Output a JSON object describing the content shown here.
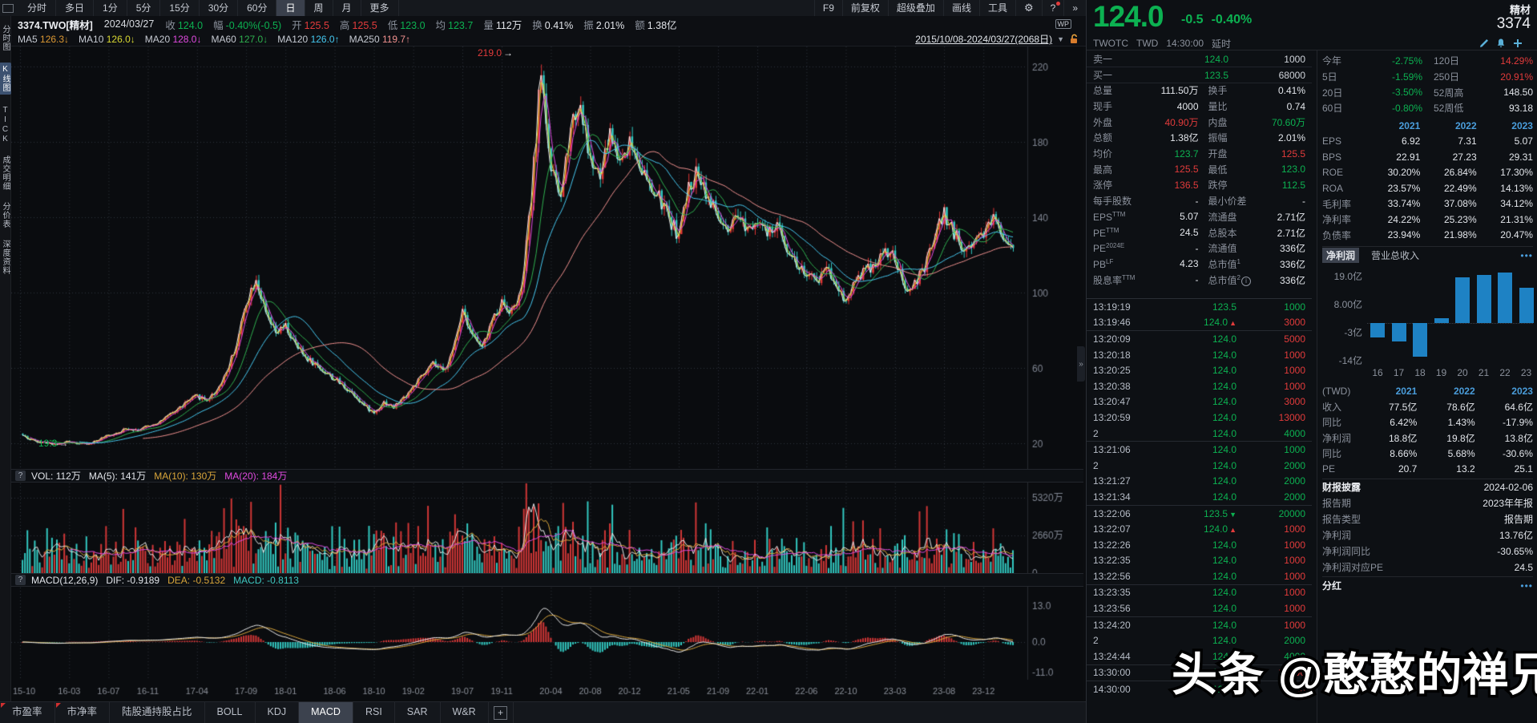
{
  "colors": {
    "up": "#e03636",
    "down": "#32c8c0",
    "green": "#0cb151",
    "red": "#e23b3b",
    "blue": "#4a9ddb",
    "bar_blue": "#1e82c4",
    "grid": "#2e333c",
    "axis_text": "#7f8591"
  },
  "toolbar": {
    "periods": [
      "分时",
      "多日",
      "1分",
      "5分",
      "15分",
      "30分",
      "60分",
      "日",
      "周",
      "月",
      "更多"
    ],
    "active_period": "日",
    "right_items": [
      "F9",
      "前复权",
      "超级叠加",
      "画线",
      "工具"
    ],
    "expand": "»"
  },
  "info_bar": {
    "symbol": "3374.TWO[精材]",
    "date": "2024/03/27",
    "fields": [
      {
        "label": "收",
        "value": "124.0",
        "color": "green"
      },
      {
        "label": "幅",
        "value": "-0.40%(-0.5)",
        "color": "green"
      },
      {
        "label": "开",
        "value": "125.5",
        "color": "red"
      },
      {
        "label": "高",
        "value": "125.5",
        "color": "red"
      },
      {
        "label": "低",
        "value": "123.0",
        "color": "green"
      },
      {
        "label": "均",
        "value": "123.7",
        "color": "green"
      },
      {
        "label": "量",
        "value": "112万",
        "color": "white"
      },
      {
        "label": "换",
        "value": "0.41%",
        "color": "white"
      },
      {
        "label": "振",
        "value": "2.01%",
        "color": "white"
      },
      {
        "label": "额",
        "value": "1.38亿",
        "color": "white"
      }
    ],
    "wp_badge": "WP"
  },
  "ma_bar": {
    "items": [
      {
        "label": "MA5",
        "value": "126.3",
        "arrow": "↓",
        "color": "#dd9933"
      },
      {
        "label": "MA10",
        "value": "126.0",
        "arrow": "↓",
        "color": "#d8d832"
      },
      {
        "label": "MA20",
        "value": "128.0",
        "arrow": "↓",
        "color": "#e04ae0"
      },
      {
        "label": "MA60",
        "value": "127.0",
        "arrow": "↓",
        "color": "#2eaf4e"
      },
      {
        "label": "MA120",
        "value": "126.0",
        "arrow": "↑",
        "color": "#45c8f0"
      },
      {
        "label": "MA250",
        "value": "119.7",
        "arrow": "↑",
        "color": "#f0908e"
      }
    ],
    "date_range": "2015/10/08-2024/03/27(2068日)",
    "caret": "▼"
  },
  "sidebar": {
    "items": [
      {
        "label": "分时图",
        "active": false
      },
      {
        "label": "K线图",
        "active": true
      },
      {
        "label": "TICK",
        "active": false
      },
      {
        "label": "成交明细",
        "active": false
      },
      {
        "label": "分价表",
        "active": false
      },
      {
        "label": "深度资料",
        "active": false
      }
    ]
  },
  "chart_data": [
    {
      "type": "candlestick",
      "title": "3374.TWO 精材 日K",
      "date_range": "2015/10/08-2024/03/27(2068日)",
      "price_ticks": [
        220,
        180,
        140,
        100,
        60,
        20
      ],
      "x_labels": [
        "15-10",
        "16-03",
        "16-07",
        "16-11",
        "17-04",
        "17-09",
        "18-01",
        "18-06",
        "18-10",
        "19-02",
        "19-07",
        "19-11",
        "20-04",
        "20-08",
        "20-12",
        "21-05",
        "21-09",
        "22-01",
        "22-06",
        "22-10",
        "23-03",
        "23-08",
        "23-12"
      ],
      "x_label_month_index": [
        0,
        5,
        9,
        13,
        18,
        23,
        27,
        32,
        36,
        40,
        45,
        49,
        54,
        58,
        62,
        67,
        71,
        75,
        80,
        84,
        89,
        94,
        98
      ],
      "monthly_start": "2015-10",
      "monthly_close": [
        25,
        22,
        21,
        20,
        19.5,
        21,
        20,
        19.5,
        22,
        24,
        26,
        28,
        27,
        29,
        31,
        34,
        38,
        42,
        45,
        43,
        48,
        58,
        72,
        95,
        108,
        88,
        78,
        82,
        72,
        66,
        62,
        58,
        54,
        50,
        46,
        40,
        36,
        42,
        39,
        44,
        50,
        56,
        62,
        58,
        68,
        92,
        78,
        70,
        85,
        95,
        90,
        100,
        150,
        219,
        165,
        150,
        190,
        200,
        170,
        160,
        185,
        170,
        180,
        170,
        155,
        150,
        140,
        130,
        155,
        165,
        150,
        140,
        130,
        140,
        135,
        140,
        130,
        135,
        125,
        115,
        110,
        105,
        115,
        105,
        95,
        108,
        112,
        116,
        122,
        118,
        100,
        105,
        112,
        130,
        142,
        132,
        122,
        128,
        133,
        140,
        131,
        124
      ],
      "high_annotation": {
        "text": "219.0",
        "arrow": "→"
      },
      "low_annotation": {
        "text": "19.3",
        "arrow": "→"
      },
      "volume_axis": {
        "ticks": [
          "5320万",
          "2660万",
          "0"
        ],
        "values": [
          53200000,
          26600000,
          0
        ]
      },
      "macd_axis": {
        "ticks": [
          "13.0",
          "0.0",
          "-11.0"
        ],
        "values": [
          13,
          0,
          -11
        ]
      }
    },
    {
      "type": "bar",
      "title": "净利润(年度)",
      "unit": "亿",
      "categories": [
        "16",
        "17",
        "18",
        "19",
        "20",
        "21",
        "22",
        "23"
      ],
      "values": [
        -5.5,
        -7,
        -13,
        2,
        17.9,
        18.8,
        19.8,
        13.8
      ],
      "y_ticks": [
        {
          "label": "19.0亿",
          "value": 19
        },
        {
          "label": "8.00亿",
          "value": 8
        },
        {
          "label": "-3亿",
          "value": -3
        },
        {
          "label": "-14亿",
          "value": -14
        }
      ],
      "bar_color": "#1e82c4"
    }
  ],
  "legends": {
    "vol": {
      "q": "?",
      "vol_label": "VOL:",
      "vol_value": "112万",
      "ma5_label": "MA(5):",
      "ma5_value": "141万",
      "ma10_label": "MA(10):",
      "ma10_value": "130万",
      "ma20_label": "MA(20):",
      "ma20_value": "184万"
    },
    "macd": {
      "q": "?",
      "title": "MACD(12,26,9)",
      "dif_label": "DIF:",
      "dif_value": "-0.9189",
      "dea_label": "DEA:",
      "dea_value": "-0.5132",
      "macd_label": "MACD:",
      "macd_value": "-0.8113"
    }
  },
  "bottom_tabs": {
    "tabs": [
      {
        "label": "市盈率",
        "active": false,
        "marker": true
      },
      {
        "label": "市净率",
        "active": false,
        "marker": true
      },
      {
        "label": "陆股通持股占比",
        "active": false,
        "marker": false
      },
      {
        "label": "BOLL",
        "active": false,
        "marker": false
      },
      {
        "label": "KDJ",
        "active": false,
        "marker": false
      },
      {
        "label": "MACD",
        "active": true,
        "marker": false
      },
      {
        "label": "RSI",
        "active": false,
        "marker": false
      },
      {
        "label": "SAR",
        "active": false,
        "marker": false
      },
      {
        "label": "W&R",
        "active": false,
        "marker": false
      }
    ],
    "add_icon": "+"
  },
  "quote": {
    "name": "精材",
    "code": "3374",
    "price": "124.0",
    "change": "-0.5",
    "change_pct": "-0.40%",
    "exchange": "TWOTC",
    "currency": "TWD",
    "time": "14:30:00",
    "tag": "延时",
    "book": [
      {
        "label": "卖一",
        "price": "124.0",
        "qty": "1000"
      },
      {
        "label": "买一",
        "price": "123.5",
        "qty": "68000"
      }
    ],
    "stats": [
      {
        "l1": "总量",
        "v1": "111.50万",
        "c1": "white",
        "l2": "换手",
        "v2": "0.41%",
        "c2": "white"
      },
      {
        "l1": "现手",
        "v1": "4000",
        "c1": "white",
        "l2": "量比",
        "v2": "0.74",
        "c2": "white"
      },
      {
        "l1": "外盘",
        "v1": "40.90万",
        "c1": "red",
        "l2": "内盘",
        "v2": "70.60万",
        "c2": "green"
      },
      {
        "l1": "总额",
        "v1": "1.38亿",
        "c1": "white",
        "l2": "振幅",
        "v2": "2.01%",
        "c2": "white"
      },
      {
        "l1": "均价",
        "v1": "123.7",
        "c1": "green",
        "l2": "开盘",
        "v2": "125.5",
        "c2": "red"
      },
      {
        "l1": "最高",
        "v1": "125.5",
        "c1": "red",
        "l2": "最低",
        "v2": "123.0",
        "c2": "green"
      },
      {
        "l1": "涨停",
        "v1": "136.5",
        "c1": "red",
        "l2": "跌停",
        "v2": "112.5",
        "c2": "green"
      },
      {
        "l1": "每手股数",
        "v1": "-",
        "c1": "white",
        "l2": "最小价差",
        "v2": "-",
        "c2": "white"
      },
      {
        "l1": "EPS",
        "s1": "TTM",
        "v1": "5.07",
        "c1": "white",
        "l2": "流通盘",
        "v2": "2.71亿",
        "c2": "white"
      },
      {
        "l1": "PE",
        "s1": "TTM",
        "v1": "24.5",
        "c1": "white",
        "l2": "总股本",
        "v2": "2.71亿",
        "c2": "white"
      },
      {
        "l1": "PE",
        "s1": "2024E",
        "v1": "-",
        "c1": "white",
        "l2": "流通值",
        "v2": "336亿",
        "c2": "white"
      },
      {
        "l1": "PB",
        "s1": "LF",
        "v1": "4.23",
        "c1": "white",
        "l2": "总市值",
        "s2": "1",
        "v2": "336亿",
        "c2": "white"
      },
      {
        "l1": "股息率",
        "s1": "TTM",
        "v1": "-",
        "c1": "white",
        "l2": "总市值",
        "s2": "2",
        "i2": "i",
        "v2": "336亿",
        "c2": "white"
      }
    ],
    "perf": [
      {
        "l1": "今年",
        "v1": "-2.75%",
        "c1": "green",
        "l2": "120日",
        "v2": "14.29%",
        "c2": "red"
      },
      {
        "l1": "5日",
        "v1": "-1.59%",
        "c1": "green",
        "l2": "250日",
        "v2": "20.91%",
        "c2": "red"
      },
      {
        "l1": "20日",
        "v1": "-3.50%",
        "c1": "green",
        "l2": "52周高",
        "v2": "148.50",
        "c2": "white"
      },
      {
        "l1": "60日",
        "v1": "-0.80%",
        "c1": "green",
        "l2": "52周低",
        "v2": "93.18",
        "c2": "white"
      }
    ],
    "year_table": {
      "years": [
        "2021",
        "2022",
        "2023"
      ],
      "rows": [
        {
          "label": "EPS",
          "values": [
            "6.92",
            "7.31",
            "5.07"
          ]
        },
        {
          "label": "BPS",
          "values": [
            "22.91",
            "27.23",
            "29.31"
          ]
        },
        {
          "label": "ROE",
          "values": [
            "30.20%",
            "26.84%",
            "17.30%"
          ]
        },
        {
          "label": "ROA",
          "values": [
            "23.57%",
            "22.49%",
            "14.13%"
          ]
        },
        {
          "label": "毛利率",
          "values": [
            "33.74%",
            "37.08%",
            "34.12%"
          ]
        },
        {
          "label": "净利率",
          "values": [
            "24.22%",
            "25.23%",
            "21.31%"
          ]
        },
        {
          "label": "负债率",
          "values": [
            "23.94%",
            "21.98%",
            "20.47%"
          ]
        }
      ]
    },
    "fin_tabs": {
      "active": "净利润",
      "other": "营业总收入",
      "more": "•••"
    },
    "fin_table": {
      "currency": "(TWD)",
      "years": [
        "2021",
        "2022",
        "2023"
      ],
      "rows": [
        {
          "label": "收入",
          "values": [
            "77.5亿",
            "78.6亿",
            "64.6亿"
          ],
          "colors": [
            "white",
            "white",
            "white"
          ]
        },
        {
          "label": "同比",
          "values": [
            "6.42%",
            "1.43%",
            "-17.9%"
          ],
          "colors": [
            "red",
            "red",
            "green"
          ]
        },
        {
          "label": "净利润",
          "values": [
            "18.8亿",
            "19.8亿",
            "13.8亿"
          ],
          "colors": [
            "white",
            "white",
            "white"
          ]
        },
        {
          "label": "同比",
          "values": [
            "8.66%",
            "5.68%",
            "-30.6%"
          ],
          "colors": [
            "red",
            "red",
            "green"
          ]
        },
        {
          "label": "PE",
          "values": [
            "20.7",
            "13.2",
            "25.1"
          ],
          "colors": [
            "white",
            "white",
            "white"
          ]
        }
      ]
    },
    "report": [
      {
        "label": "财报披露",
        "value": "2024-02-06",
        "bold": true,
        "color": "white"
      },
      {
        "label": "报告期",
        "value": "2023年年报",
        "color": "white"
      },
      {
        "label": "报告类型",
        "value": "报告期",
        "color": "white"
      },
      {
        "label": "净利润",
        "value": "13.76亿",
        "color": "red"
      },
      {
        "label": "净利润同比",
        "value": "-30.65%",
        "color": "green"
      },
      {
        "label": "净利润对应PE",
        "value": "24.5",
        "color": "white"
      }
    ],
    "dividend": {
      "label": "分红",
      "more": "•••"
    },
    "ticks": [
      {
        "time": "13:19:19",
        "price": "123.5",
        "arrow": "",
        "qty": "1000",
        "qc": "green",
        "sep": false
      },
      {
        "time": "13:19:46",
        "price": "124.0",
        "arrow": "up",
        "qty": "3000",
        "qc": "red",
        "sep": true
      },
      {
        "time": "13:20:09",
        "price": "124.0",
        "arrow": "",
        "qty": "5000",
        "qc": "red",
        "sep": false
      },
      {
        "time": "13:20:18",
        "price": "124.0",
        "arrow": "",
        "qty": "1000",
        "qc": "red",
        "sep": false
      },
      {
        "time": "13:20:25",
        "price": "124.0",
        "arrow": "",
        "qty": "1000",
        "qc": "red",
        "sep": false
      },
      {
        "time": "13:20:38",
        "price": "124.0",
        "arrow": "",
        "qty": "1000",
        "qc": "red",
        "sep": false
      },
      {
        "time": "13:20:47",
        "price": "124.0",
        "arrow": "",
        "qty": "3000",
        "qc": "red",
        "sep": false
      },
      {
        "time": "13:20:59",
        "price": "124.0",
        "arrow": "",
        "qty": "13000",
        "qc": "red",
        "sep": false
      },
      {
        "time": "2",
        "price": "124.0",
        "arrow": "",
        "qty": "4000",
        "qc": "green",
        "sep": true
      },
      {
        "time": "13:21:06",
        "price": "124.0",
        "arrow": "",
        "qty": "1000",
        "qc": "green",
        "sep": false
      },
      {
        "time": "2",
        "price": "124.0",
        "arrow": "",
        "qty": "2000",
        "qc": "green",
        "sep": false
      },
      {
        "time": "13:21:27",
        "price": "124.0",
        "arrow": "",
        "qty": "2000",
        "qc": "green",
        "sep": false
      },
      {
        "time": "13:21:34",
        "price": "124.0",
        "arrow": "",
        "qty": "2000",
        "qc": "green",
        "sep": true
      },
      {
        "time": "13:22:06",
        "price": "123.5",
        "arrow": "down",
        "qty": "20000",
        "qc": "green",
        "sep": false
      },
      {
        "time": "13:22:07",
        "price": "124.0",
        "arrow": "up",
        "qty": "1000",
        "qc": "red",
        "sep": false
      },
      {
        "time": "13:22:26",
        "price": "124.0",
        "arrow": "",
        "qty": "1000",
        "qc": "red",
        "sep": false
      },
      {
        "time": "13:22:35",
        "price": "124.0",
        "arrow": "",
        "qty": "1000",
        "qc": "red",
        "sep": false
      },
      {
        "time": "13:22:56",
        "price": "124.0",
        "arrow": "",
        "qty": "1000",
        "qc": "red",
        "sep": true
      },
      {
        "time": "13:23:35",
        "price": "124.0",
        "arrow": "",
        "qty": "1000",
        "qc": "red",
        "sep": false
      },
      {
        "time": "13:23:56",
        "price": "124.0",
        "arrow": "",
        "qty": "1000",
        "qc": "red",
        "sep": true
      },
      {
        "time": "13:24:20",
        "price": "124.0",
        "arrow": "",
        "qty": "1000",
        "qc": "red",
        "sep": false
      },
      {
        "time": "2",
        "price": "124.0",
        "arrow": "",
        "qty": "2000",
        "qc": "green",
        "sep": false
      },
      {
        "time": "13:24:44",
        "price": "124.0",
        "arrow": "",
        "qty": "4000",
        "qc": "green",
        "sep": true
      },
      {
        "time": "13:30:00",
        "price": "124.0",
        "arrow": "",
        "qty": "37000",
        "qc": "red",
        "sep": true
      },
      {
        "time": "14:30:00",
        "price": "124.0",
        "arrow": "",
        "qty": "1000",
        "qc": "red",
        "sep": false
      }
    ]
  },
  "watermark": {
    "text": "头条 @憨憨的禅兄"
  }
}
